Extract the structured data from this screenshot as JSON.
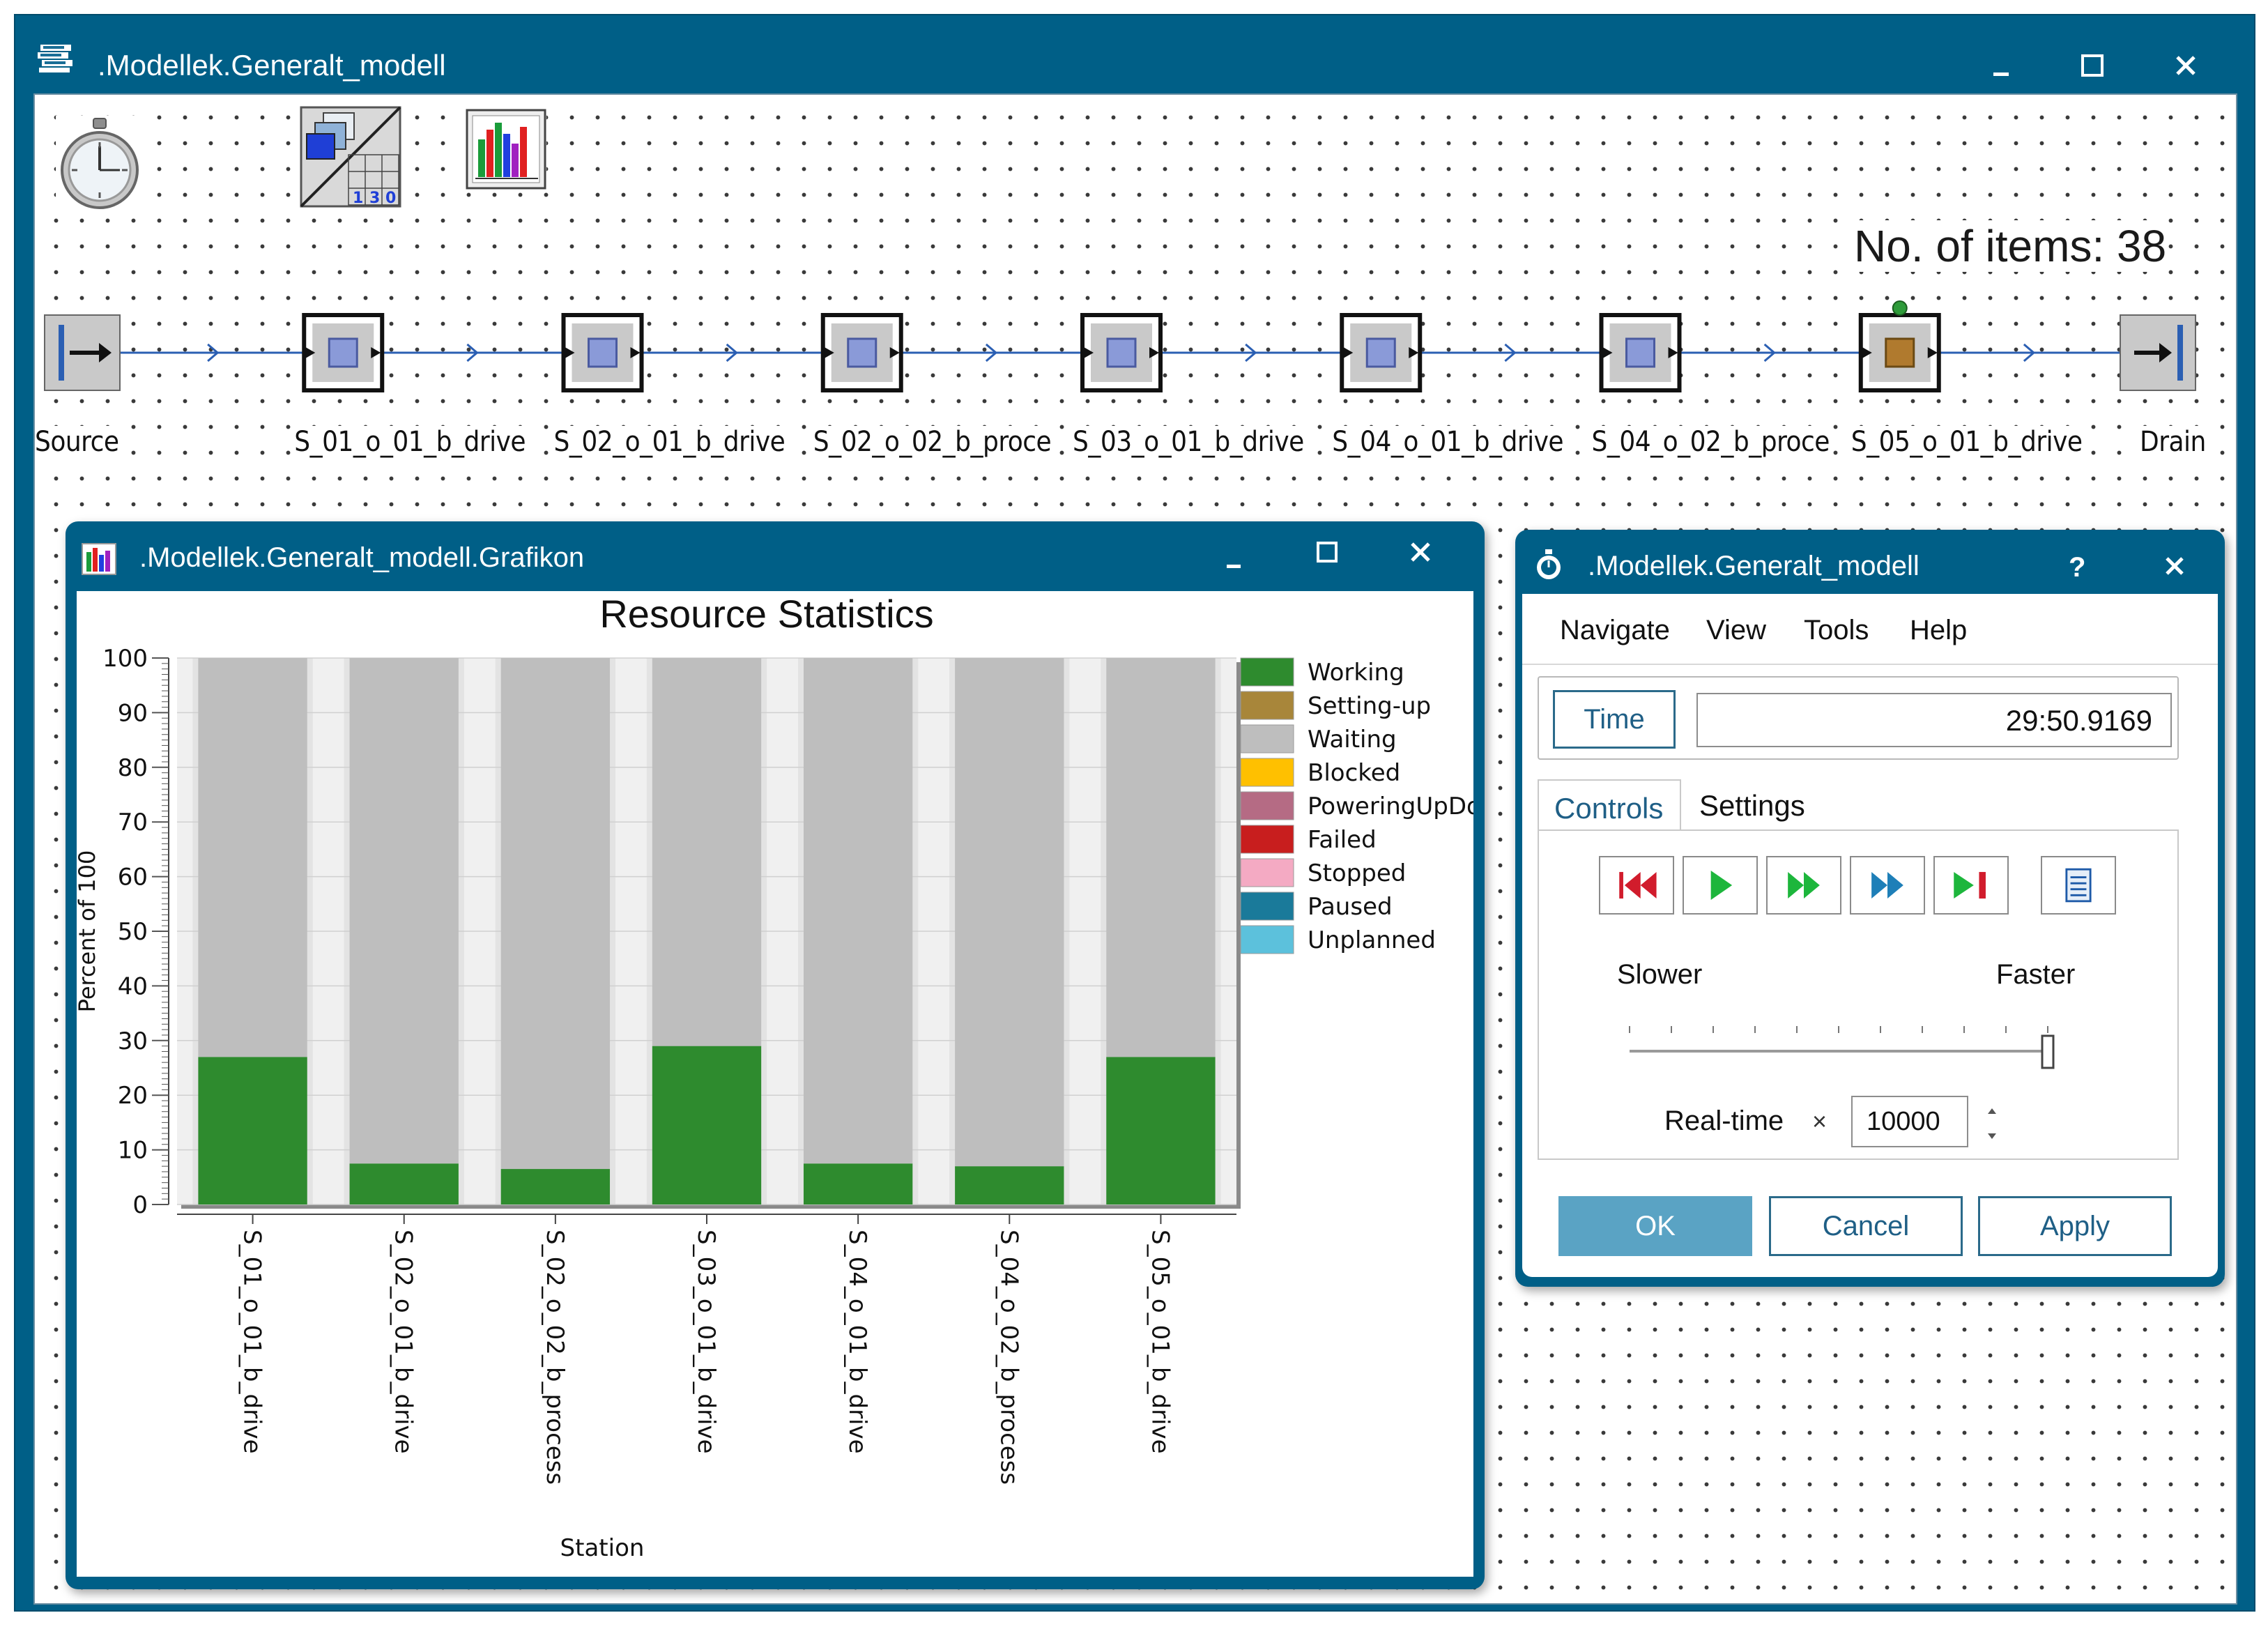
{
  "main_window": {
    "title": ".Modellek.Generalt_modell",
    "items_label": "No. of items: 38",
    "stations": [
      "Source",
      "S_01_o_01_b_drive",
      "S_02_o_01_b_drive",
      "S_02_o_02_b_proce",
      "S_03_o_01_b_drive",
      "S_04_o_01_b_drive",
      "S_04_o_02_b_proce",
      "S_05_o_01_b_drive",
      "Drain"
    ]
  },
  "chart_window": {
    "title": ".Modellek.Generalt_modell.Grafikon"
  },
  "chart_data": {
    "type": "bar",
    "stacked": true,
    "title": "Resource Statistics",
    "xlabel": "Station",
    "ylabel": "Percent of 100",
    "ylim": [
      0,
      100
    ],
    "yticks": [
      0,
      10,
      20,
      30,
      40,
      50,
      60,
      70,
      80,
      90,
      100
    ],
    "grid": true,
    "legend_position": "right",
    "categories": [
      "S_01_o_01_b_drive",
      "S_02_o_01_b_drive",
      "S_02_o_02_b_process",
      "S_03_o_01_b_drive",
      "S_04_o_01_b_drive",
      "S_04_o_02_b_process",
      "S_05_o_01_b_drive"
    ],
    "series": [
      {
        "name": "Working",
        "color": "#2e8b2e",
        "values": [
          27,
          7.5,
          6.5,
          29,
          7.5,
          7,
          27
        ]
      },
      {
        "name": "Setting-up",
        "color": "#a8863a",
        "values": [
          0,
          0,
          0,
          0,
          0,
          0,
          0
        ]
      },
      {
        "name": "Waiting",
        "color": "#bebebe",
        "values": [
          73,
          92.5,
          93.5,
          71,
          92.5,
          93,
          73
        ]
      },
      {
        "name": "Blocked",
        "color": "#ffc000",
        "values": [
          0,
          0,
          0,
          0,
          0,
          0,
          0
        ]
      },
      {
        "name": "PoweringUpDown",
        "color": "#b56b84",
        "values": [
          0,
          0,
          0,
          0,
          0,
          0,
          0
        ]
      },
      {
        "name": "Failed",
        "color": "#c81e1e",
        "values": [
          0,
          0,
          0,
          0,
          0,
          0,
          0
        ]
      },
      {
        "name": "Stopped",
        "color": "#f4aac3",
        "values": [
          0,
          0,
          0,
          0,
          0,
          0,
          0
        ]
      },
      {
        "name": "Paused",
        "color": "#1a7a9a",
        "values": [
          0,
          0,
          0,
          0,
          0,
          0,
          0
        ]
      },
      {
        "name": "Unplanned",
        "color": "#5cc1dc",
        "values": [
          0,
          0,
          0,
          0,
          0,
          0,
          0
        ]
      }
    ]
  },
  "control_window": {
    "title": ".Modellek.Generalt_modell",
    "help_symbol": "?",
    "menu": [
      "Navigate",
      "View",
      "Tools",
      "Help"
    ],
    "time_button": "Time",
    "time_value": "29:50.9169",
    "tabs": [
      "Controls",
      "Settings"
    ],
    "slider_left": "Slower",
    "slider_right": "Faster",
    "speed_level": 1.0,
    "realtime_label": "Real-time",
    "realtime_times": "×",
    "realtime_value": "10000",
    "ok": "OK",
    "cancel": "Cancel",
    "apply": "Apply"
  }
}
